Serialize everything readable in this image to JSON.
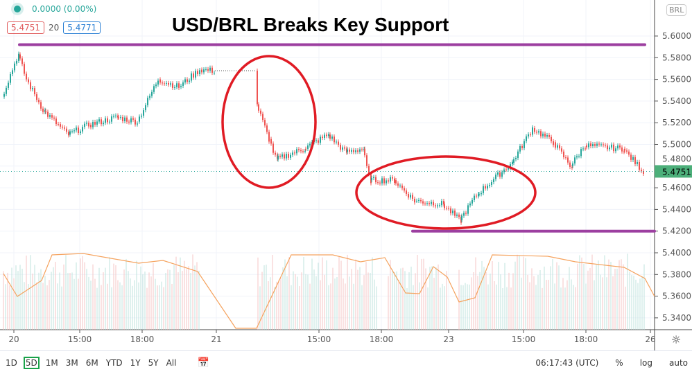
{
  "legend": {
    "change": "0.0000 (0.00%)",
    "bid": "5.4751",
    "spread": "20",
    "ask": "5.4771"
  },
  "currency_badge": "BRL",
  "chart_data": {
    "type": "candlestick",
    "title": "USD/BRL Breaks Key Support",
    "y_ticks": [
      "5.6000",
      "5.5800",
      "5.5600",
      "5.5400",
      "5.5200",
      "5.5000",
      "5.4800",
      "5.4600",
      "5.4400",
      "5.4200",
      "5.4000",
      "5.3800",
      "5.3600",
      "5.3400"
    ],
    "ylim": [
      5.33,
      5.615
    ],
    "x_ticks": [
      "20",
      "15:00",
      "18:00",
      "21",
      "15:00",
      "18:00",
      "23",
      "15:00",
      "18:00",
      "26"
    ],
    "close_path": [
      5.544,
      5.583,
      5.56,
      5.531,
      5.509,
      5.518,
      5.525,
      5.521,
      5.56,
      5.553,
      5.569,
      5.568,
      5.568,
      5.537,
      5.505,
      5.486,
      5.496,
      5.509,
      5.493,
      5.496,
      5.467,
      5.467,
      5.448,
      5.445,
      5.43,
      5.454,
      5.483,
      5.515,
      5.502,
      5.48,
      5.499,
      5.496,
      5.475
    ],
    "last_price": "5.4751",
    "resistance_line": 5.592,
    "support_line": 5.42,
    "support_label": "5.4200",
    "colors": {
      "up": "#26a69a",
      "down": "#ef5350",
      "annotation_line": "#9c3fa0",
      "ellipse": "#e01b24",
      "volume_ma": "#f5a25d"
    }
  },
  "toolbar": {
    "ranges": [
      "1D",
      "5D",
      "1M",
      "3M",
      "6M",
      "YTD",
      "1Y",
      "5Y",
      "All"
    ],
    "selected": "5D",
    "time": "06:17:43 (UTC)",
    "percent": "%",
    "log": "log",
    "auto": "auto"
  }
}
